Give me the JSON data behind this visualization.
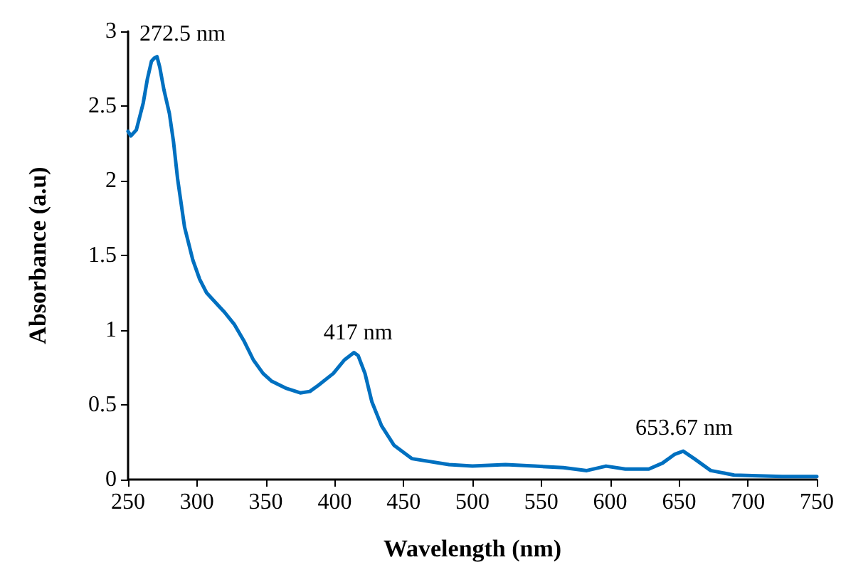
{
  "chart_data": {
    "type": "line",
    "xlabel": "Wavelength (nm)",
    "ylabel": "Absorbance (a.u)",
    "xlim": [
      250,
      750
    ],
    "xticks": [
      250,
      300,
      350,
      400,
      450,
      500,
      550,
      600,
      650,
      700,
      750
    ],
    "ylim": [
      0,
      3
    ],
    "yticks": [
      0,
      0.5,
      1,
      1.5,
      2,
      2.5,
      3
    ],
    "grid": false,
    "marker": "none",
    "line_style": "solid",
    "series": [
      {
        "color": "#0070c0",
        "x": [
          250,
          252,
          256,
          261,
          264,
          267,
          269,
          271,
          273,
          276,
          280,
          283,
          286,
          291,
          297,
          302,
          307,
          314,
          320,
          327,
          334,
          341,
          348,
          354,
          365,
          375,
          382,
          388,
          399,
          407,
          414,
          417,
          422,
          427,
          434,
          443,
          456,
          483,
          500,
          524,
          545,
          566,
          583,
          597,
          611,
          628,
          638,
          647,
          653,
          661,
          673,
          690,
          725,
          750
        ],
        "values": [
          2.33,
          2.3,
          2.34,
          2.52,
          2.68,
          2.8,
          2.82,
          2.83,
          2.76,
          2.61,
          2.45,
          2.26,
          2.01,
          1.69,
          1.47,
          1.34,
          1.25,
          1.18,
          1.12,
          1.04,
          0.93,
          0.8,
          0.71,
          0.66,
          0.61,
          0.58,
          0.59,
          0.63,
          0.71,
          0.8,
          0.85,
          0.83,
          0.71,
          0.52,
          0.36,
          0.23,
          0.14,
          0.1,
          0.09,
          0.1,
          0.09,
          0.08,
          0.06,
          0.09,
          0.07,
          0.07,
          0.11,
          0.17,
          0.19,
          0.14,
          0.06,
          0.03,
          0.02,
          0.02
        ]
      }
    ],
    "annotations": [
      {
        "text": "272.5 nm",
        "x": 272.5,
        "y": 2.83
      },
      {
        "text": "417 nm",
        "x": 417,
        "y": 0.83
      },
      {
        "text": "653.67 nm",
        "x": 653.67,
        "y": 0.19
      }
    ]
  }
}
